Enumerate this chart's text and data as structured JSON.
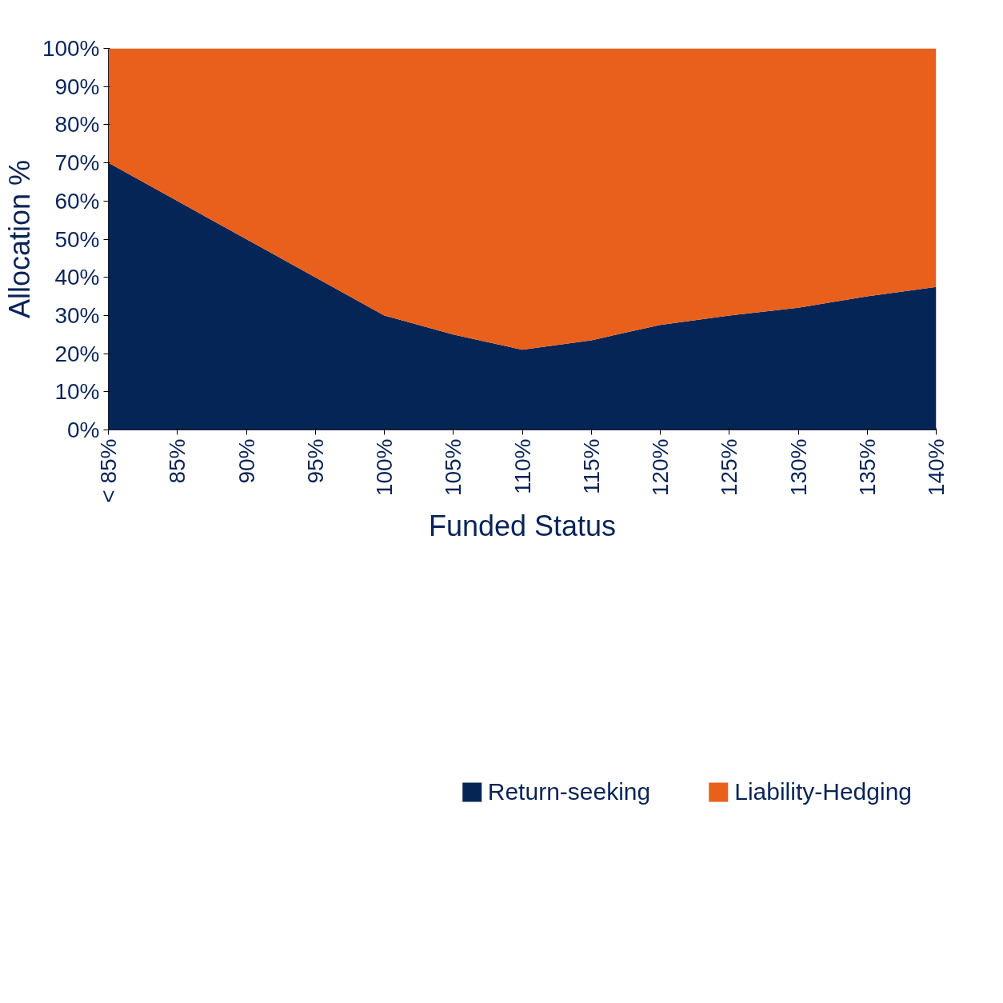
{
  "chart_data": {
    "type": "area",
    "stacked": true,
    "xlabel": "Funded Status",
    "ylabel": "Allocation %",
    "categories": [
      "< 85%",
      "85%",
      "90%",
      "95%",
      "100%",
      "105%",
      "110%",
      "115%",
      "120%",
      "125%",
      "130%",
      "135%",
      "140%"
    ],
    "series": [
      {
        "name": "Return-seeking",
        "color": "#062557",
        "values": [
          70,
          60,
          50,
          40,
          30,
          25,
          21,
          23.5,
          27.5,
          30,
          32,
          35,
          37.5
        ]
      },
      {
        "name": "Liability-Hedging",
        "color": "#e8601c",
        "values": [
          30,
          40,
          50,
          60,
          70,
          75,
          79,
          76.5,
          72.5,
          70,
          68,
          65,
          62.5
        ]
      }
    ],
    "ylim": [
      0,
      100
    ],
    "yticks": [
      {
        "value": 0,
        "label": "0%"
      },
      {
        "value": 10,
        "label": "10%"
      },
      {
        "value": 20,
        "label": "20%"
      },
      {
        "value": 30,
        "label": "30%"
      },
      {
        "value": 40,
        "label": "40%"
      },
      {
        "value": 50,
        "label": "50%"
      },
      {
        "value": 60,
        "label": "60%"
      },
      {
        "value": 70,
        "label": "70%"
      },
      {
        "value": 80,
        "label": "80%"
      },
      {
        "value": 90,
        "label": "90%"
      },
      {
        "value": 100,
        "label": "100%"
      }
    ],
    "grid": false,
    "legend": "bottom"
  }
}
